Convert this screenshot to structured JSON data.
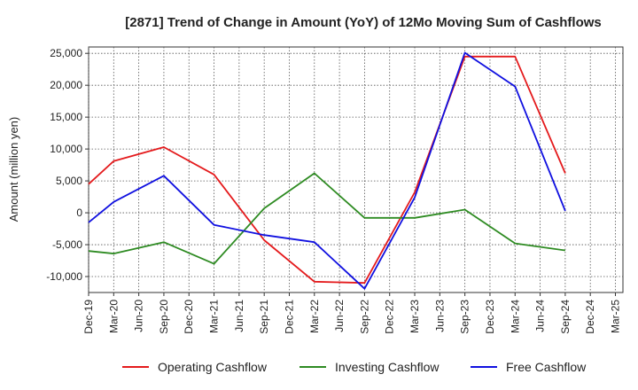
{
  "chart_data": {
    "type": "line",
    "title": "[2871]  Trend of Change in Amount (YoY) of 12Mo Moving Sum of Cashflows",
    "xlabel": "",
    "ylabel": "Amount (million yen)",
    "ylim": [
      -12500,
      26000
    ],
    "yticks": [
      25000,
      20000,
      15000,
      10000,
      5000,
      0,
      -5000,
      -10000
    ],
    "ytick_labels": [
      "25,000",
      "20,000",
      "15,000",
      "10,000",
      "5,000",
      "0",
      "-5,000",
      "-10,000"
    ],
    "categories": [
      "Dec-19",
      "Mar-20",
      "Jun-20",
      "Sep-20",
      "Dec-20",
      "Mar-21",
      "Jun-21",
      "Sep-21",
      "Dec-21",
      "Mar-22",
      "Jun-22",
      "Sep-22",
      "Dec-22",
      "Mar-23",
      "Jun-23",
      "Sep-23",
      "Dec-23",
      "Mar-24",
      "Jun-24",
      "Sep-24",
      "Dec-24",
      "Mar-25"
    ],
    "grid": true,
    "legend_position": "bottom",
    "series": [
      {
        "name": "Operating Cashflow",
        "color": "#e41a1c",
        "values": [
          4500,
          8100,
          null,
          10300,
          null,
          6000,
          null,
          -4300,
          null,
          -10800,
          null,
          -11000,
          null,
          3200,
          null,
          24500,
          null,
          24500,
          null,
          6200,
          null,
          null
        ]
      },
      {
        "name": "Investing Cashflow",
        "color": "#2e8b22",
        "values": [
          -6000,
          -6400,
          null,
          -4600,
          null,
          -8000,
          null,
          700,
          null,
          6200,
          null,
          -800,
          null,
          -800,
          null,
          500,
          null,
          -4800,
          null,
          -5900,
          null,
          null
        ]
      },
      {
        "name": "Free Cashflow",
        "color": "#1010e0",
        "values": [
          -1500,
          1700,
          null,
          5800,
          null,
          -1900,
          null,
          -3500,
          null,
          -4600,
          null,
          -11900,
          null,
          2400,
          null,
          25100,
          null,
          19800,
          null,
          300,
          null,
          null
        ]
      }
    ]
  }
}
